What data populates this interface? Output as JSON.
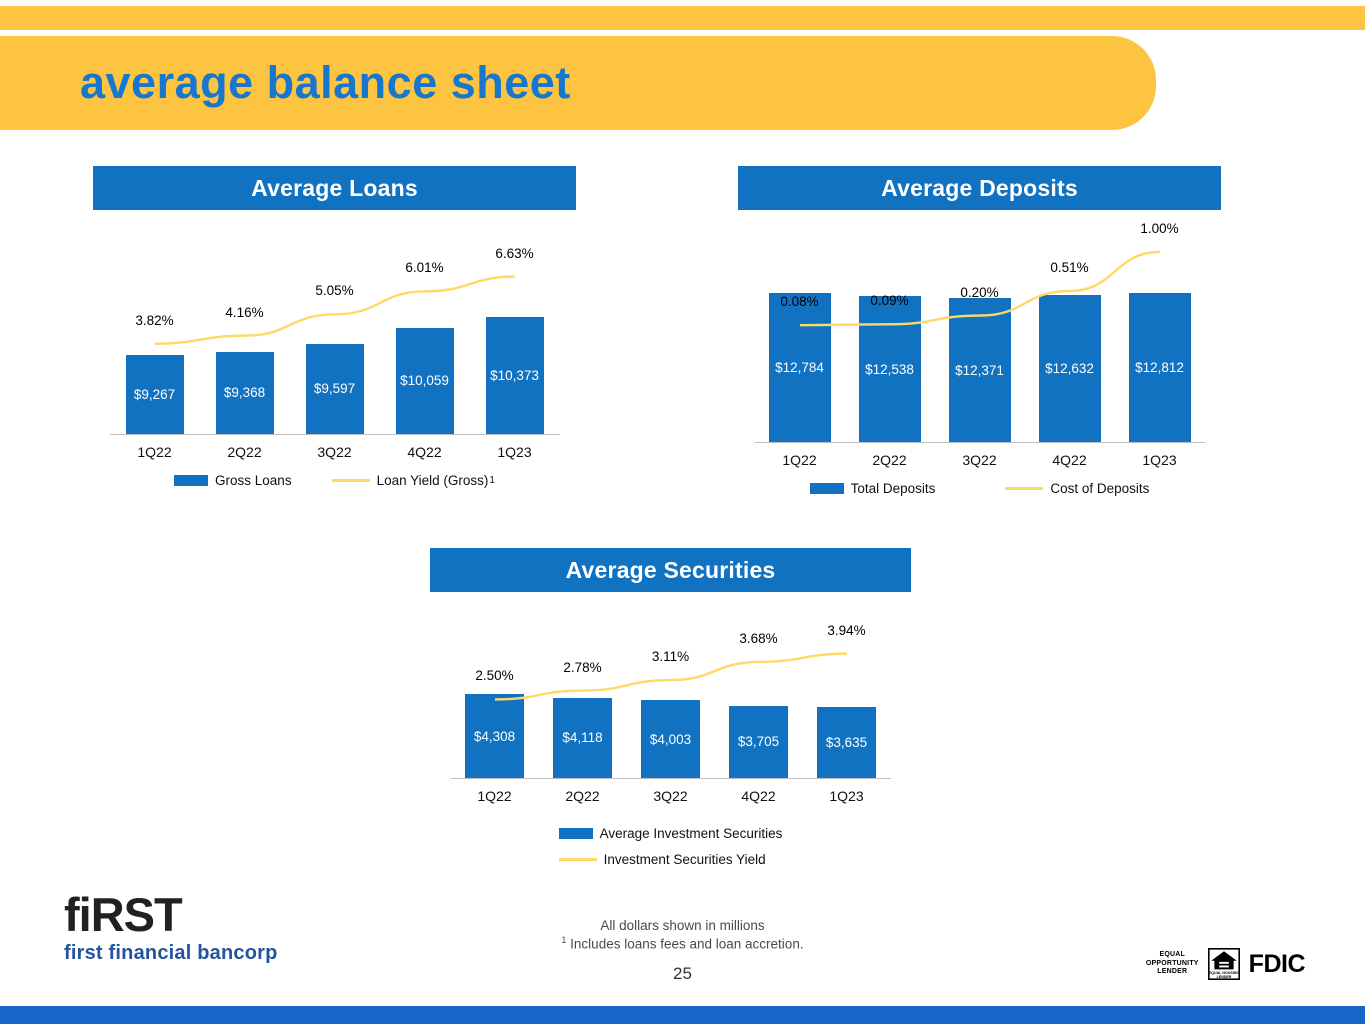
{
  "slide": {
    "title": "average balance sheet",
    "page_number": "25"
  },
  "logo": {
    "brand": "fiRST",
    "subtitle": "first financial bancorp"
  },
  "badges": {
    "equal_opportunity_lines": [
      "EQUAL",
      "OPPORTUNITY",
      "LENDER"
    ],
    "equal_housing_lines": [
      "EQUAL HOUSING",
      "LENDER"
    ],
    "fdic": "FDIC"
  },
  "footnotes": {
    "line1": "All dollars shown in millions",
    "line2_sup": "1",
    "line2": " Includes loans fees and loan accretion."
  },
  "colors": {
    "accent_yellow": "#FCC440",
    "primary_blue": "#1272C2",
    "heading_blue": "#1777CE",
    "line_gold": "#FFD966",
    "bottom_bar_blue": "#1566C6"
  },
  "chart_data": [
    {
      "type": "bar",
      "title": "Average Loans",
      "categories": [
        "1Q22",
        "2Q22",
        "3Q22",
        "4Q22",
        "1Q23"
      ],
      "series": [
        {
          "name": "Gross Loans",
          "kind": "bar",
          "values": [
            9267,
            9368,
            9597,
            10059,
            10373
          ],
          "labels": [
            "$9,267",
            "$9,368",
            "$9,597",
            "$10,059",
            "$10,373"
          ]
        },
        {
          "name": "Loan Yield (Gross)",
          "kind": "line",
          "superscript": "1",
          "values": [
            3.82,
            4.16,
            5.05,
            6.01,
            6.63
          ],
          "labels": [
            "3.82%",
            "4.16%",
            "5.05%",
            "6.01%",
            "6.63%"
          ]
        }
      ],
      "bar_axis": [
        7000,
        13200
      ],
      "line_axis": [
        0,
        9
      ],
      "grid": false,
      "legend_position": "bottom"
    },
    {
      "type": "bar",
      "title": "Average Deposits",
      "categories": [
        "1Q22",
        "2Q22",
        "3Q22",
        "4Q22",
        "1Q23"
      ],
      "series": [
        {
          "name": "Total Deposits",
          "kind": "bar",
          "values": [
            12784,
            12538,
            12371,
            12632,
            12812
          ],
          "labels": [
            "$12,784",
            "$12,538",
            "$12,371",
            "$12,632",
            "$12,812"
          ]
        },
        {
          "name": "Cost of Deposits",
          "kind": "line",
          "values": [
            0.08,
            0.09,
            0.2,
            0.51,
            1.0
          ],
          "labels": [
            "0.08%",
            "0.09%",
            "0.20%",
            "0.51%",
            "1.00%"
          ]
        }
      ],
      "bar_axis": [
        0,
        18500
      ],
      "line_axis": [
        -1.4,
        1.3
      ],
      "grid": false,
      "legend_position": "bottom"
    },
    {
      "type": "bar",
      "title": "Average Securities",
      "categories": [
        "1Q22",
        "2Q22",
        "3Q22",
        "4Q22",
        "1Q23"
      ],
      "series": [
        {
          "name": "Average Investment Securities",
          "kind": "bar",
          "values": [
            4308,
            4118,
            4003,
            3705,
            3635
          ],
          "labels": [
            "$4,308",
            "$4,118",
            "$4,003",
            "$3,705",
            "$3,635"
          ]
        },
        {
          "name": "Investment Securities Yield",
          "kind": "line",
          "values": [
            2.5,
            2.78,
            3.11,
            3.68,
            3.94
          ],
          "labels": [
            "2.50%",
            "2.78%",
            "3.11%",
            "3.68%",
            "3.94%"
          ]
        }
      ],
      "bar_axis": [
        0,
        9000
      ],
      "line_axis": [
        0,
        5.5
      ],
      "grid": false,
      "legend_position": "bottom-stacked"
    }
  ]
}
